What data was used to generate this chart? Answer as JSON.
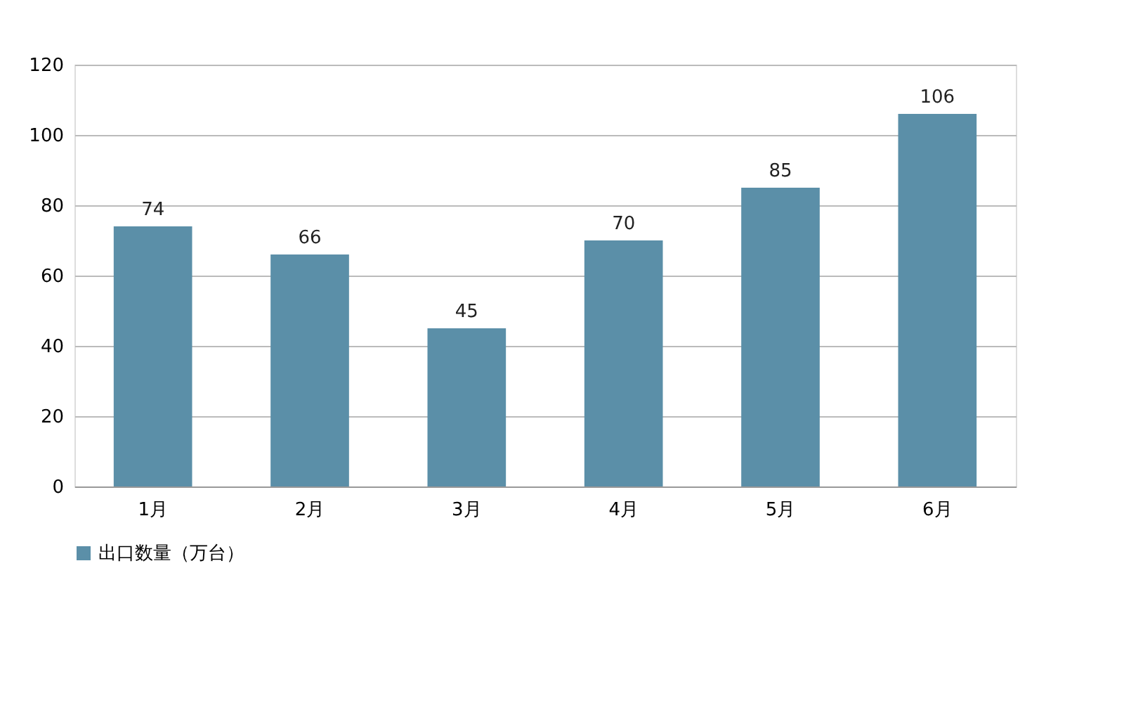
{
  "chart_data": {
    "type": "bar",
    "categories": [
      "1月",
      "2月",
      "3月",
      "4月",
      "5月",
      "6月"
    ],
    "series": [
      {
        "name": "出口数量（万台）",
        "color": "#5b8fa8",
        "values": [
          74,
          66,
          45,
          70,
          85,
          106
        ]
      }
    ],
    "ylim": [
      0,
      120
    ],
    "yticks": [
      0,
      20,
      40,
      60,
      80,
      100,
      120
    ],
    "grid": "y",
    "legend": "bottom",
    "data_labels": true
  }
}
